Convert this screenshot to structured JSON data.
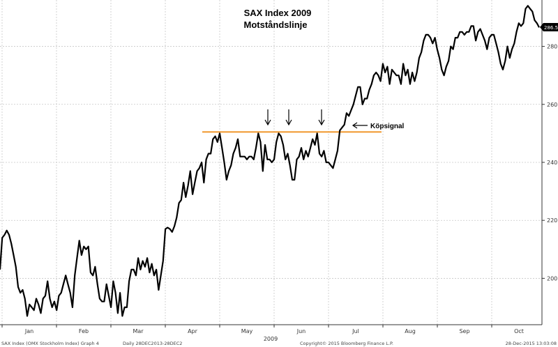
{
  "chart_data": {
    "type": "line",
    "title": "SAX Index 2009",
    "subtitle": "Motståndslinje",
    "xlabel": "2009",
    "ylabel": "",
    "x_tick_labels": [
      "Jan",
      "Feb",
      "Mar",
      "Apr",
      "May",
      "Jun",
      "Jul",
      "Aug",
      "Sep",
      "Oct"
    ],
    "y_ticks": [
      200,
      220,
      240,
      260,
      280
    ],
    "ylim": [
      184,
      296
    ],
    "grid": "dashed",
    "last_value_label": "286.54",
    "resistance_level": 250.5,
    "resistance_color": "#f0962a",
    "line_color": "#000000",
    "annotations": [
      {
        "text": "Köpsignal"
      }
    ],
    "series": [
      {
        "values": [
          203,
          214,
          215,
          216.5,
          215,
          212,
          208,
          204,
          197,
          195,
          196,
          193,
          187,
          191,
          190,
          189,
          193,
          191,
          188,
          193,
          194,
          199,
          193,
          190,
          192,
          189,
          194,
          195,
          198,
          201,
          198,
          195,
          190,
          201,
          207,
          213,
          208,
          211,
          210,
          211,
          202,
          201,
          204,
          198,
          193,
          192,
          192,
          198,
          194,
          190,
          199,
          195,
          188,
          195,
          187,
          190,
          190,
          199,
          203,
          203,
          201,
          207,
          203,
          206,
          204,
          207,
          202,
          205,
          201,
          203,
          196,
          201,
          206,
          217,
          217.5,
          217,
          216,
          218,
          221,
          226,
          227,
          233,
          228,
          232,
          237,
          229,
          233,
          237,
          238,
          240,
          233,
          241,
          243,
          243,
          248,
          249,
          247,
          250,
          245,
          240,
          234,
          237,
          239,
          243,
          245,
          248,
          242,
          242,
          242,
          241,
          242,
          242,
          241,
          245,
          250,
          247,
          237,
          246,
          241,
          241,
          240,
          241,
          247,
          250,
          249,
          246,
          241,
          243,
          239,
          234,
          234,
          241,
          242,
          245,
          241,
          244,
          242,
          245,
          248,
          246,
          250,
          243,
          242,
          244,
          240,
          240,
          239,
          238,
          241,
          244,
          251,
          252,
          253,
          257,
          256,
          258,
          260,
          263,
          266,
          266,
          260,
          262,
          262,
          265,
          267,
          270,
          271,
          270,
          268,
          274,
          271,
          273,
          267,
          272,
          271,
          270,
          270,
          267,
          274,
          270,
          272,
          267,
          271,
          268,
          271,
          276,
          278,
          282,
          284,
          284,
          283,
          281,
          283,
          279,
          276,
          272,
          270,
          273,
          275,
          280,
          279,
          283,
          283,
          285,
          285,
          284,
          285,
          285,
          287,
          287,
          282,
          285,
          286,
          284,
          282,
          279,
          283,
          284,
          284,
          281,
          278,
          274,
          272,
          275,
          280,
          276,
          279,
          281,
          285,
          288,
          287,
          288,
          293,
          294,
          293,
          292,
          289,
          288,
          286.54
        ]
      }
    ]
  },
  "footer": {
    "left": "SAX Index (OMX Stockholm Index) Graph 4",
    "range": "Daily 28DEC2013-28DEC2",
    "copyright": "Copyright© 2015 Bloomberg Finance L.P.",
    "timestamp": "28-Dec-2015 13:03:08"
  }
}
